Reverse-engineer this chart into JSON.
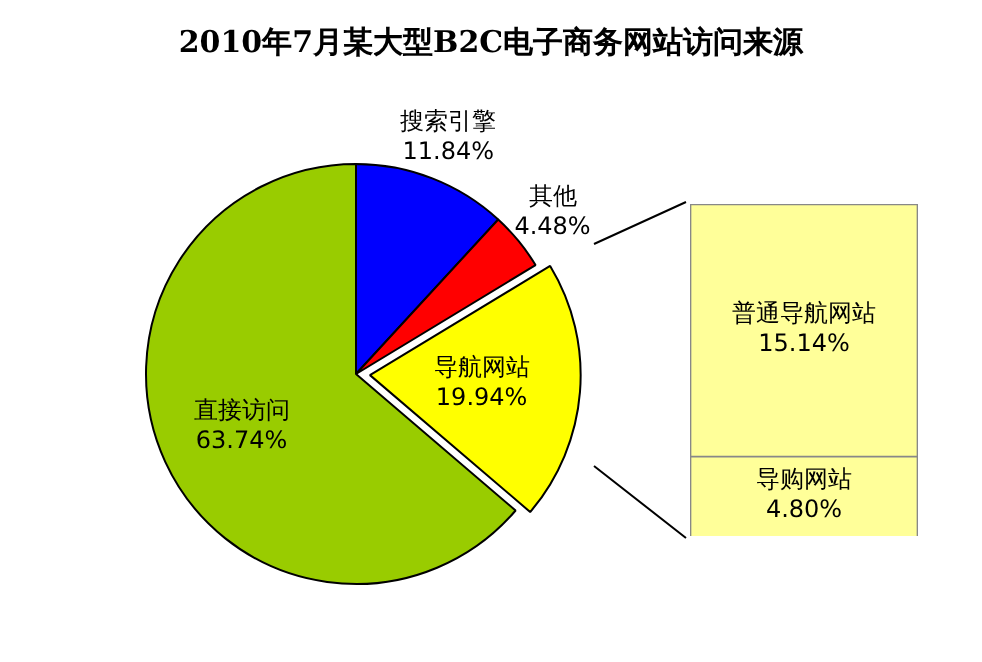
{
  "chart_data": [
    {
      "type": "pie",
      "title": "2010年7月某大型B2C电子商务网站访问来源",
      "categories": [
        "搜索引擎",
        "其他",
        "导航网站",
        "直接访问"
      ],
      "values": [
        11.84,
        4.48,
        19.94,
        63.74
      ],
      "colors": [
        "#0000ff",
        "#ff0000",
        "#ffff00",
        "#99cc00"
      ],
      "value_labels": [
        "11.84%",
        "4.48%",
        "19.94%",
        "63.74%"
      ],
      "legend": false
    },
    {
      "type": "bar",
      "stacked": true,
      "tick_labels": false,
      "categories": [
        null
      ],
      "series": [
        {
          "name": "导购网站",
          "color": "#ffff99",
          "values": [
            4.8
          ],
          "value_labels": [
            "4.80%"
          ]
        },
        {
          "name": "普通导航网站",
          "color": "#ffff99",
          "values": [
            15.14
          ],
          "value_labels": [
            "15.14%"
          ]
        }
      ],
      "legend": false
    }
  ]
}
